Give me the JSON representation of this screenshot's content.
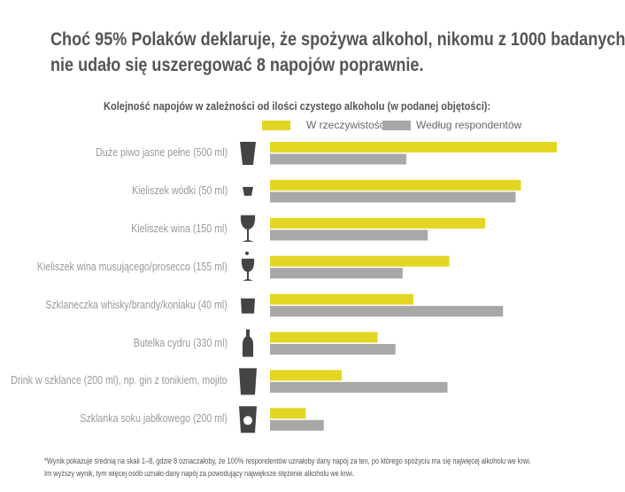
{
  "title_lines": [
    "Choć 95% Polaków deklaruje, że spożywa alkohol, nikomu z 1000 badanych",
    "nie udało się uszeregować 8 napojów poprawnie."
  ],
  "chart_data": {
    "type": "bar",
    "orientation": "horizontal",
    "title": "Kolejność napojów w zależności od ilości czystego alkoholu (w podanej objętości):",
    "categories": [
      "Duże piwo jasne pełne (500 ml)",
      "Kieliszek wódki (50 ml)",
      "Kieliszek wina (150 ml)",
      "Kieliszek wina musującego/prosecco (155 ml)",
      "Szklaneczka whisky/brandy/koniaku (40 ml)",
      "Butelka cydru (330 ml)",
      "Drink w szklance (200 ml), np. gin z tonikiem, mojito",
      "Szklanka soku jabłkowego (200 ml)"
    ],
    "icons": [
      "beer-glass-icon",
      "shot-glass-icon",
      "wine-glass-icon",
      "sparkling-wine-glass-icon",
      "whisky-glass-icon",
      "cider-bottle-icon",
      "tall-glass-icon",
      "apple-juice-glass-icon"
    ],
    "series": [
      {
        "name": "W rzeczywistości*",
        "color": "#e3d623",
        "values": [
          8,
          7,
          6,
          5,
          4,
          3,
          2,
          1
        ]
      },
      {
        "name": "Według respondentów",
        "color": "#a8a8a8",
        "values": [
          3.8,
          6.85,
          4.4,
          3.7,
          6.5,
          3.5,
          4.95,
          1.5
        ]
      }
    ],
    "xlim": [
      0,
      8
    ],
    "grid": false,
    "legend": "top-right"
  },
  "footnote": [
    "*Wynik pokazuje średnią na skali 1–8, gdzie 8 oznaczałoby, że 100% respondentów uznałoby dany napój za ten, po którego spożyciu ma się najwięcej alkoholu we krwi.",
    "Im wyższy wynik, tym więcej osób uznało dany napój za powodujący największe stężenie alkoholu we krwi."
  ]
}
